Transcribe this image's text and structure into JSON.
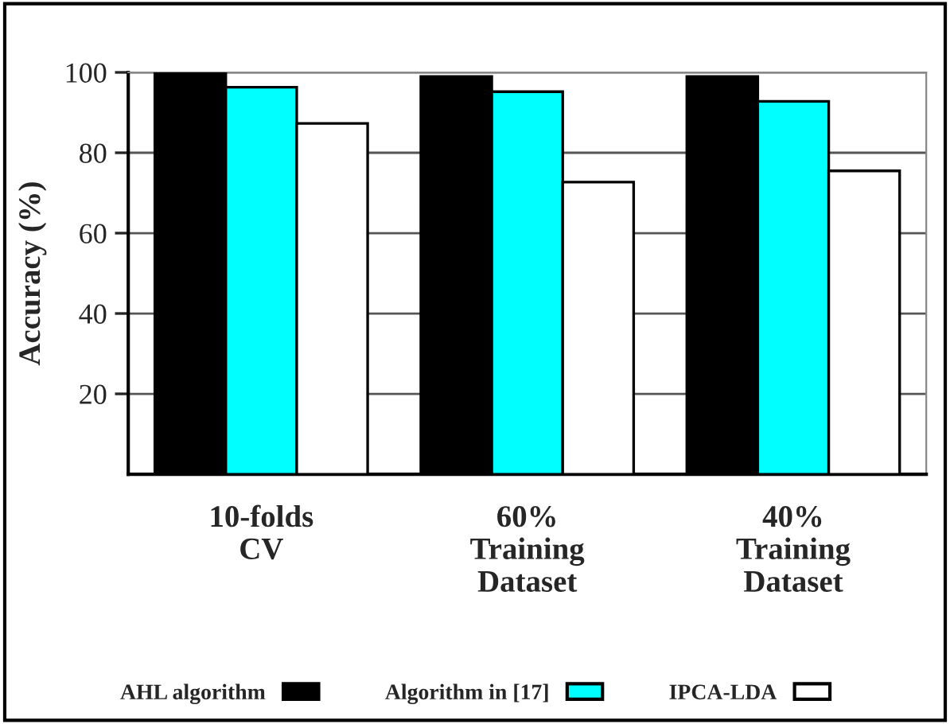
{
  "chart_data": {
    "type": "bar",
    "ylabel": "Accuracy (%)",
    "categories": [
      "10-folds\nCV",
      "60%\nTraining\nDataset",
      "40%\nTraining\nDataset"
    ],
    "series": [
      {
        "name": "AHL algorithm",
        "color": "#000000",
        "values": [
          100,
          99,
          99
        ]
      },
      {
        "name": "Algorithm in [17]",
        "color": "#00ffff",
        "values": [
          96.3,
          95.2,
          92.8
        ]
      },
      {
        "name": "IPCA-LDA",
        "color": "#ffffff",
        "values": [
          87.3,
          72.7,
          75.5
        ]
      }
    ],
    "ylim": [
      0,
      100
    ],
    "yticks": [
      20,
      40,
      60,
      80,
      100
    ],
    "grid": "y",
    "legend": "bottom"
  }
}
